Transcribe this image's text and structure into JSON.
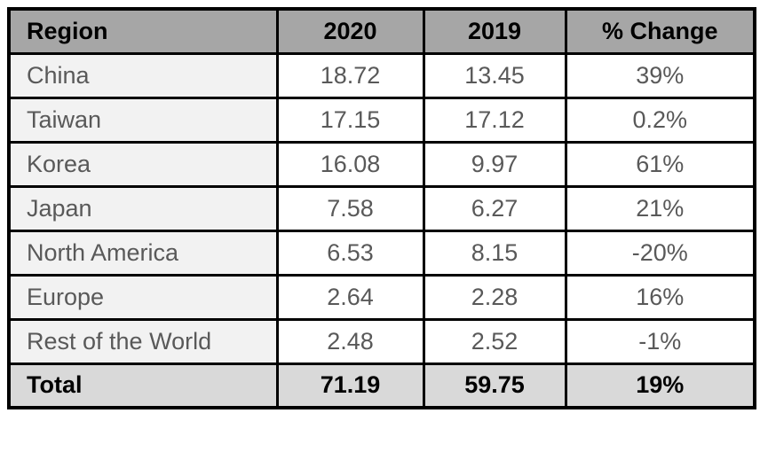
{
  "chart_data": {
    "type": "table",
    "columns": [
      "Region",
      "2020",
      "2019",
      "% Change"
    ],
    "rows": [
      [
        "China",
        "18.72",
        "13.45",
        "39%"
      ],
      [
        "Taiwan",
        "17.15",
        "17.12",
        "0.2%"
      ],
      [
        "Korea",
        "16.08",
        "9.97",
        "61%"
      ],
      [
        "Japan",
        "7.58",
        "6.27",
        "21%"
      ],
      [
        "North America",
        "6.53",
        "8.15",
        "-20%"
      ],
      [
        "Europe",
        "2.64",
        "2.28",
        "16%"
      ],
      [
        "Rest of the World",
        "2.48",
        "2.52",
        "-1%"
      ]
    ],
    "total_row": [
      "Total",
      "71.19",
      "59.75",
      "19%"
    ]
  },
  "colors": {
    "header_bg": "#a6a6a6",
    "total_bg": "#d9d9d9",
    "region_col_bg": "#f2f2f2",
    "value_cell_bg": "#ffffff",
    "border": "#000000",
    "header_text": "#000000",
    "data_text": "#595959"
  }
}
